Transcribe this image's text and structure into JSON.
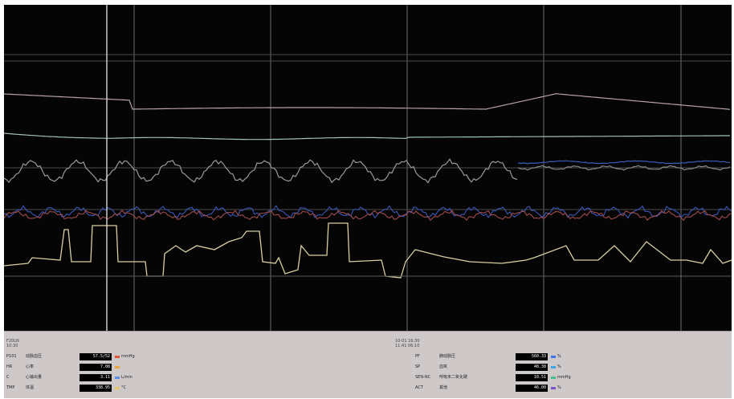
{
  "stamps": {
    "left": "F20LN\n10:30",
    "center": "10-01 16:30\n11:41 06:10"
  },
  "params_left": [
    {
      "code": "P101",
      "name": "动脉血压",
      "value": "57.5/52",
      "unit": "mmHg",
      "color": "#e0563a"
    },
    {
      "code": "HR",
      "name": "心率",
      "value": "7.08",
      "unit": "",
      "color": "#e9a43b"
    },
    {
      "code": "C",
      "name": "心输出量",
      "value": "3.11",
      "unit": "L/min",
      "color": "#5b8fe8"
    },
    {
      "code": "TMP",
      "name": "体温",
      "value": "338.95",
      "unit": "°C",
      "color": "#e7c768"
    }
  ],
  "params_right": [
    {
      "code": "PF",
      "name": "肺动脉压",
      "value": "560.33",
      "unit": "%",
      "color": "#3d74e6"
    },
    {
      "code": "SP",
      "name": "血氧",
      "value": "48.38",
      "unit": "%",
      "color": "#3aa7e4"
    },
    {
      "code": "SEN-NC",
      "name": "呼吸末二氧化碳",
      "value": "10.51",
      "unit": "mmHg",
      "color": "#43c08a"
    },
    {
      "code": "ACT",
      "name": "其他",
      "value": "46.00",
      "unit": "%",
      "color": "#7a54c8"
    }
  ]
}
